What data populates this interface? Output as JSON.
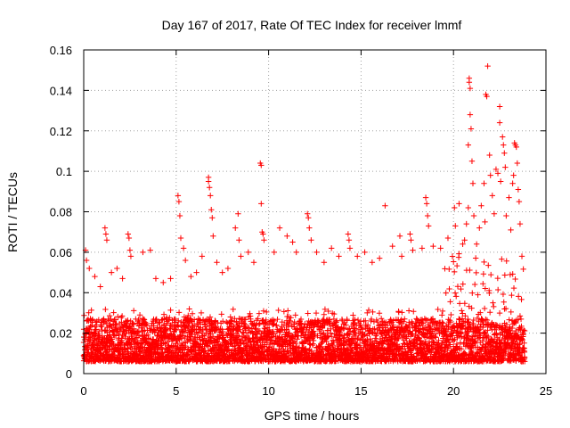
{
  "chart_data": {
    "type": "scatter",
    "title": "Day 167 of 2017, Rate Of TEC Index for receiver lmmf",
    "xlabel": "GPS time / hours",
    "ylabel": "ROTI / TECUs",
    "xlim": [
      0,
      25
    ],
    "ylim": [
      0,
      0.16
    ],
    "xticks": [
      0,
      5,
      10,
      15,
      20,
      25
    ],
    "xtick_labels": [
      "0",
      "5",
      "10",
      "15",
      "20",
      "25"
    ],
    "yticks": [
      0,
      0.02,
      0.04,
      0.06,
      0.08,
      0.1,
      0.12,
      0.14,
      0.16
    ],
    "ytick_labels": [
      "0",
      "0.02",
      "0.04",
      "0.06",
      "0.08",
      "0.1",
      "0.12",
      "0.14",
      "0.16"
    ],
    "grid": true,
    "marker": "plus",
    "color": "#ff0000",
    "series": [
      {
        "name": "ROTI",
        "background_band": {
          "x_range": [
            0,
            23.85
          ],
          "step_hours": 0.0333,
          "points_per_step": 6,
          "y_min": 0.006,
          "y_typical_max": 0.032,
          "y_late_max": 0.06,
          "late_start_hour": 19.5
        },
        "points": [
          [
            0.1,
            0.061
          ],
          [
            0.15,
            0.056
          ],
          [
            0.3,
            0.052
          ],
          [
            0.6,
            0.048
          ],
          [
            0.9,
            0.043
          ],
          [
            1.15,
            0.072
          ],
          [
            1.2,
            0.069
          ],
          [
            1.25,
            0.066
          ],
          [
            1.5,
            0.05
          ],
          [
            1.8,
            0.052
          ],
          [
            2.1,
            0.047
          ],
          [
            2.4,
            0.069
          ],
          [
            2.45,
            0.067
          ],
          [
            2.5,
            0.061
          ],
          [
            2.55,
            0.058
          ],
          [
            3.2,
            0.06
          ],
          [
            3.6,
            0.061
          ],
          [
            3.9,
            0.047
          ],
          [
            4.3,
            0.045
          ],
          [
            4.7,
            0.047
          ],
          [
            5.1,
            0.088
          ],
          [
            5.15,
            0.085
          ],
          [
            5.2,
            0.078
          ],
          [
            5.25,
            0.067
          ],
          [
            5.4,
            0.062
          ],
          [
            5.5,
            0.056
          ],
          [
            5.8,
            0.048
          ],
          [
            6.1,
            0.05
          ],
          [
            6.4,
            0.058
          ],
          [
            6.75,
            0.097
          ],
          [
            6.75,
            0.095
          ],
          [
            6.8,
            0.092
          ],
          [
            6.85,
            0.088
          ],
          [
            6.9,
            0.081
          ],
          [
            6.95,
            0.077
          ],
          [
            7.0,
            0.068
          ],
          [
            7.2,
            0.055
          ],
          [
            7.5,
            0.05
          ],
          [
            7.8,
            0.052
          ],
          [
            8.2,
            0.072
          ],
          [
            8.35,
            0.079
          ],
          [
            8.4,
            0.066
          ],
          [
            8.5,
            0.058
          ],
          [
            8.9,
            0.06
          ],
          [
            9.2,
            0.055
          ],
          [
            9.55,
            0.104
          ],
          [
            9.6,
            0.103
          ],
          [
            9.6,
            0.084
          ],
          [
            9.65,
            0.07
          ],
          [
            9.7,
            0.069
          ],
          [
            9.75,
            0.066
          ],
          [
            10.3,
            0.06
          ],
          [
            10.6,
            0.072
          ],
          [
            11.0,
            0.068
          ],
          [
            11.3,
            0.065
          ],
          [
            11.5,
            0.06
          ],
          [
            12.1,
            0.079
          ],
          [
            12.15,
            0.077
          ],
          [
            12.2,
            0.072
          ],
          [
            12.3,
            0.066
          ],
          [
            12.6,
            0.06
          ],
          [
            13.0,
            0.055
          ],
          [
            13.4,
            0.062
          ],
          [
            13.8,
            0.058
          ],
          [
            14.3,
            0.069
          ],
          [
            14.35,
            0.066
          ],
          [
            14.4,
            0.062
          ],
          [
            14.8,
            0.058
          ],
          [
            15.2,
            0.06
          ],
          [
            15.6,
            0.055
          ],
          [
            16.0,
            0.057
          ],
          [
            16.3,
            0.083
          ],
          [
            16.7,
            0.063
          ],
          [
            17.1,
            0.068
          ],
          [
            17.2,
            0.058
          ],
          [
            17.65,
            0.069
          ],
          [
            17.7,
            0.066
          ],
          [
            17.8,
            0.061
          ],
          [
            18.3,
            0.062
          ],
          [
            18.5,
            0.087
          ],
          [
            18.55,
            0.084
          ],
          [
            18.6,
            0.078
          ],
          [
            18.65,
            0.073
          ],
          [
            18.9,
            0.063
          ],
          [
            19.3,
            0.062
          ],
          [
            19.7,
            0.067
          ],
          [
            20.05,
            0.082
          ],
          [
            20.1,
            0.073
          ],
          [
            20.3,
            0.084
          ],
          [
            20.5,
            0.064
          ],
          [
            20.6,
            0.066
          ],
          [
            20.7,
            0.074
          ],
          [
            20.8,
            0.113
          ],
          [
            20.8,
            0.082
          ],
          [
            20.85,
            0.144
          ],
          [
            20.85,
            0.146
          ],
          [
            20.9,
            0.141
          ],
          [
            20.9,
            0.128
          ],
          [
            20.95,
            0.121
          ],
          [
            21.0,
            0.105
          ],
          [
            21.05,
            0.094
          ],
          [
            21.1,
            0.078
          ],
          [
            21.25,
            0.064
          ],
          [
            21.4,
            0.072
          ],
          [
            21.5,
            0.083
          ],
          [
            21.65,
            0.094
          ],
          [
            21.7,
            0.075
          ],
          [
            21.75,
            0.138
          ],
          [
            21.8,
            0.137
          ],
          [
            21.85,
            0.152
          ],
          [
            21.95,
            0.108
          ],
          [
            22.0,
            0.098
          ],
          [
            22.1,
            0.088
          ],
          [
            22.2,
            0.079
          ],
          [
            22.3,
            0.101
          ],
          [
            22.4,
            0.099
          ],
          [
            22.5,
            0.132
          ],
          [
            22.5,
            0.124
          ],
          [
            22.55,
            0.095
          ],
          [
            22.65,
            0.117
          ],
          [
            22.7,
            0.113
          ],
          [
            22.75,
            0.109
          ],
          [
            22.8,
            0.102
          ],
          [
            22.85,
            0.078
          ],
          [
            23.0,
            0.087
          ],
          [
            23.1,
            0.071
          ],
          [
            23.2,
            0.094
          ],
          [
            23.25,
            0.098
          ],
          [
            23.3,
            0.114
          ],
          [
            23.35,
            0.113
          ],
          [
            23.4,
            0.112
          ],
          [
            23.45,
            0.104
          ],
          [
            23.5,
            0.091
          ],
          [
            23.55,
            0.085
          ],
          [
            23.6,
            0.074
          ],
          [
            23.7,
            0.058
          ]
        ]
      }
    ]
  }
}
